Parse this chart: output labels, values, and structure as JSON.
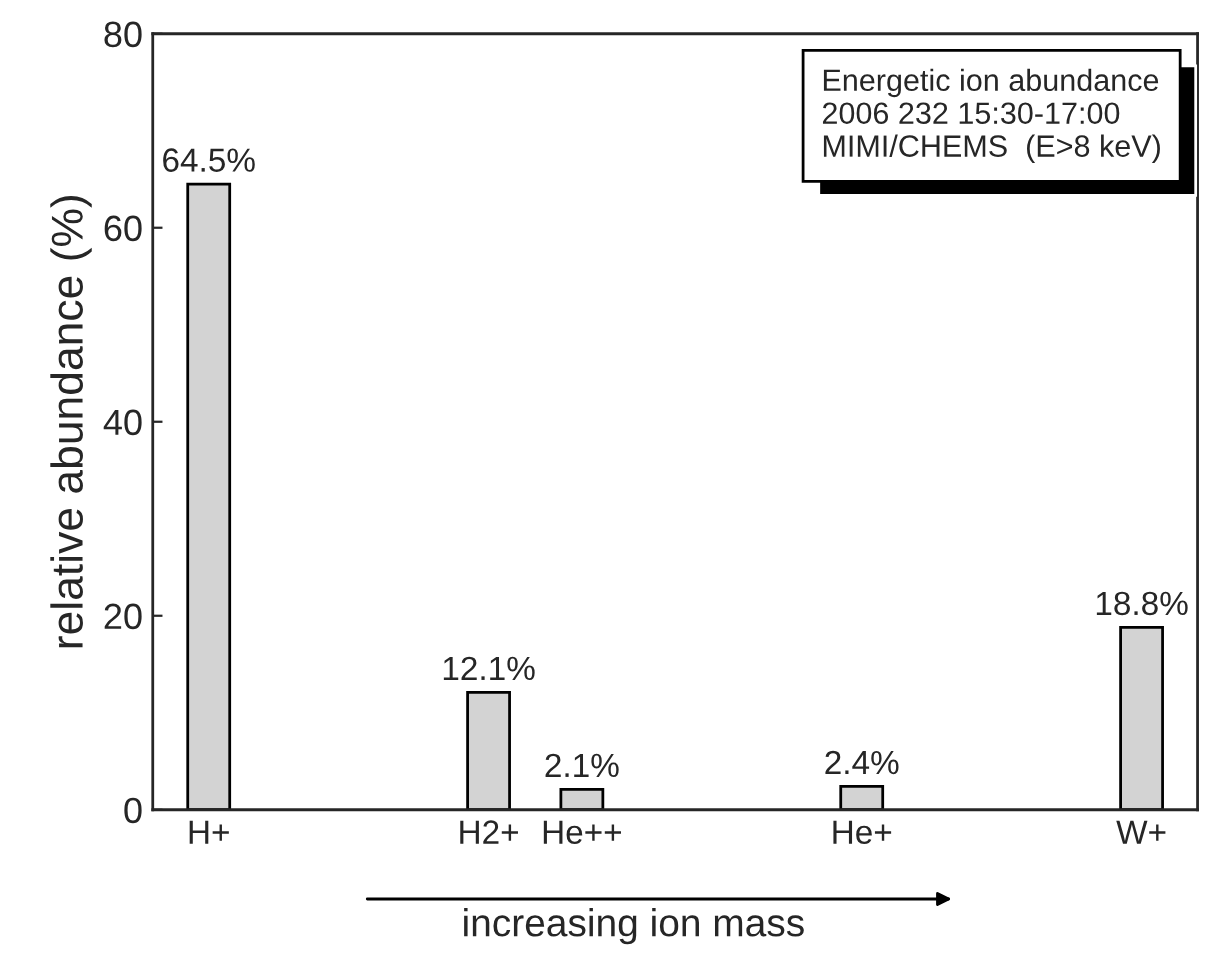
{
  "chart_data": {
    "type": "bar",
    "categories": [
      "H+",
      null,
      null,
      "H2+",
      "He++",
      null,
      null,
      "He+",
      null,
      null,
      "W+"
    ],
    "values": [
      64.5,
      null,
      null,
      12.1,
      2.1,
      null,
      null,
      2.4,
      null,
      null,
      18.8
    ],
    "value_labels": [
      "64.5%",
      null,
      null,
      "12.1%",
      "2.1%",
      null,
      null,
      "2.4%",
      null,
      null,
      "18.8%"
    ],
    "color": "#d3d3d3",
    "ylabel": "relative abundance (%)",
    "ylim": [
      0,
      80
    ],
    "yticks": [
      0,
      20,
      40,
      60,
      80
    ],
    "annotations": [
      "Energetic ion abundance\n2006 232 15:30-17:00\nMIMI/CHEMS  (E>8 keV)",
      "increasing ion mass"
    ],
    "grid": false
  }
}
